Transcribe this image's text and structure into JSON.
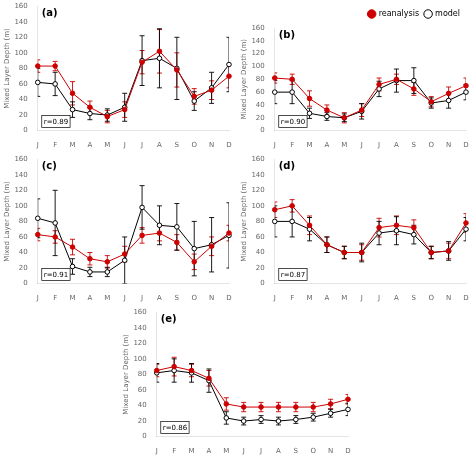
{
  "chart_data": [
    {
      "type": "line",
      "annotations": [
        "(a)",
        "r=0.89"
      ],
      "categories": [
        "J",
        "F",
        "M",
        "A",
        "M",
        "J",
        "J",
        "A",
        "S",
        "O",
        "N",
        "D"
      ],
      "series": [
        {
          "name": "reanalysis",
          "color": "#CC0000",
          "marker": "circle",
          "values": [
            83,
            83,
            48,
            30,
            18,
            27,
            88,
            102,
            78,
            44,
            52,
            70
          ],
          "errors": [
            8,
            6,
            15,
            8,
            8,
            10,
            15,
            28,
            22,
            10,
            12,
            15
          ]
        },
        {
          "name": "model",
          "color": "#000000",
          "marker": "open_circle",
          "values": [
            62,
            60,
            27,
            22,
            20,
            30,
            90,
            93,
            80,
            38,
            55,
            85
          ],
          "errors": [
            18,
            15,
            10,
            8,
            8,
            18,
            32,
            38,
            40,
            12,
            20,
            35
          ]
        }
      ],
      "ylabel": "Mixed Layer Depth (m)",
      "ylim": [
        0,
        160
      ],
      "yticks": [
        0,
        20,
        40,
        60,
        80,
        100,
        120,
        140,
        160
      ],
      "grid": false
    },
    {
      "type": "line",
      "annotations": [
        "(b)",
        "r=0.90"
      ],
      "categories": [
        "J",
        "F",
        "M",
        "A",
        "M",
        "J",
        "J",
        "A",
        "S",
        "O",
        "N",
        "D"
      ],
      "series": [
        {
          "name": "reanalysis",
          "color": "#CC0000",
          "marker": "circle",
          "values": [
            82,
            80,
            50,
            32,
            20,
            32,
            72,
            80,
            65,
            45,
            58,
            70
          ],
          "errors": [
            8,
            8,
            12,
            8,
            8,
            10,
            10,
            8,
            10,
            8,
            10,
            12
          ]
        },
        {
          "name": "model",
          "color": "#000000",
          "marker": "open_circle",
          "values": [
            60,
            60,
            27,
            22,
            20,
            30,
            65,
            78,
            78,
            43,
            47,
            60
          ],
          "errors": [
            18,
            18,
            8,
            6,
            6,
            12,
            12,
            18,
            20,
            8,
            12,
            12
          ]
        }
      ],
      "ylabel": "Mixed Layer Depth (m)",
      "ylim": [
        0,
        160
      ],
      "yticks": [
        0,
        20,
        40,
        60,
        80,
        100,
        120,
        140,
        160
      ],
      "grid": false,
      "legend": "upper right"
    },
    {
      "type": "line",
      "annotations": [
        "(c)",
        "r=0.91"
      ],
      "categories": [
        "J",
        "F",
        "M",
        "A",
        "M",
        "J",
        "J",
        "A",
        "S",
        "O",
        "N",
        "D"
      ],
      "series": [
        {
          "name": "reanalysis",
          "color": "#CC0000",
          "marker": "circle",
          "values": [
            63,
            60,
            47,
            32,
            28,
            38,
            62,
            65,
            53,
            28,
            48,
            65
          ],
          "errors": [
            8,
            8,
            10,
            8,
            8,
            10,
            10,
            10,
            10,
            10,
            12,
            10
          ]
        },
        {
          "name": "model",
          "color": "#000000",
          "marker": "open_circle",
          "values": [
            84,
            78,
            22,
            15,
            15,
            30,
            98,
            75,
            73,
            45,
            50,
            62
          ],
          "errors": [
            25,
            42,
            10,
            6,
            6,
            30,
            28,
            25,
            30,
            35,
            35,
            42
          ]
        }
      ],
      "ylabel": "Mixed Layer Depth (m)",
      "ylim": [
        0,
        160
      ],
      "yticks": [
        0,
        20,
        40,
        60,
        80,
        100,
        120,
        140,
        160
      ],
      "grid": false
    },
    {
      "type": "line",
      "annotations": [
        "(d)",
        "r=0.87"
      ],
      "categories": [
        "J",
        "F",
        "M",
        "A",
        "M",
        "J",
        "J",
        "A",
        "S",
        "O",
        "N",
        "D"
      ],
      "series": [
        {
          "name": "reanalysis",
          "color": "#CC0000",
          "marker": "circle",
          "values": [
            95,
            100,
            75,
            50,
            40,
            40,
            72,
            75,
            72,
            40,
            42,
            78
          ],
          "errors": [
            10,
            8,
            12,
            10,
            8,
            10,
            12,
            12,
            10,
            8,
            10,
            12
          ]
        },
        {
          "name": "model",
          "color": "#000000",
          "marker": "open_circle",
          "values": [
            80,
            80,
            70,
            50,
            40,
            40,
            65,
            68,
            63,
            40,
            42,
            70
          ],
          "errors": [
            20,
            20,
            15,
            10,
            8,
            12,
            15,
            18,
            12,
            8,
            12,
            15
          ]
        }
      ],
      "ylabel": "Mixed Layer Depth (m)",
      "ylim": [
        0,
        160
      ],
      "yticks": [
        0,
        20,
        40,
        60,
        80,
        100,
        120,
        140,
        160
      ],
      "grid": false
    },
    {
      "type": "line",
      "annotations": [
        "(e)",
        "r=0.86"
      ],
      "categories": [
        "J",
        "F",
        "M",
        "A",
        "M",
        "J",
        "J",
        "A",
        "S",
        "O",
        "N",
        "D"
      ],
      "series": [
        {
          "name": "reanalysis",
          "color": "#CC0000",
          "marker": "circle",
          "values": [
            85,
            90,
            85,
            75,
            42,
            38,
            38,
            38,
            38,
            38,
            42,
            48
          ],
          "errors": [
            8,
            12,
            8,
            10,
            8,
            6,
            6,
            6,
            6,
            6,
            6,
            6
          ]
        },
        {
          "name": "model",
          "color": "#000000",
          "marker": "open_circle",
          "values": [
            82,
            85,
            82,
            72,
            24,
            20,
            22,
            20,
            22,
            25,
            30,
            35
          ],
          "errors": [
            12,
            15,
            12,
            15,
            8,
            5,
            5,
            5,
            5,
            5,
            5,
            8
          ]
        }
      ],
      "ylabel": "Mixed Layer Depth (m)",
      "ylim": [
        0,
        160
      ],
      "yticks": [
        0,
        20,
        40,
        60,
        80,
        100,
        120,
        140,
        160
      ],
      "grid": false
    }
  ]
}
